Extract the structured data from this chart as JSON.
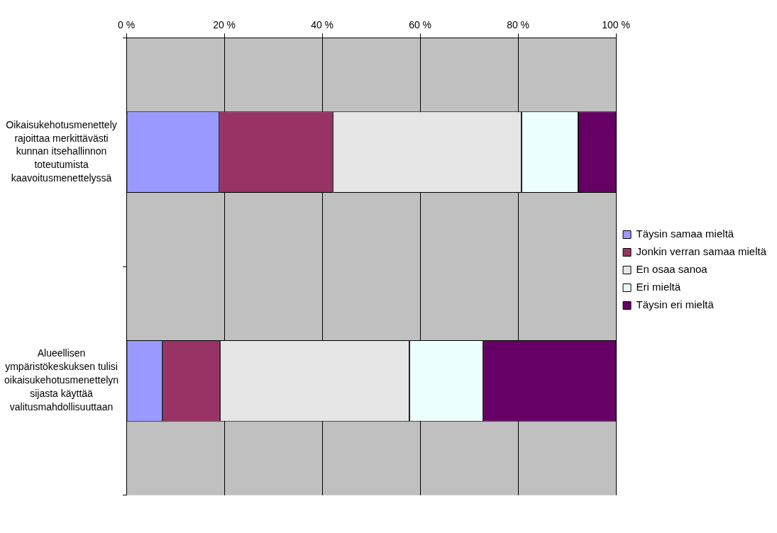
{
  "chart_data": {
    "type": "bar",
    "orientation": "horizontal",
    "stacked": true,
    "categories": [
      "Oikaisukehotusmenettely rajoittaa merkittävästi kunnan itsehallinnon toteutumista kaavoitusmenettelyssä",
      "Alueellisen ympäristökeskuksen tulisi oikaisukehotusmenettelyn sijasta käyttää valitusmahdollisuuttaan"
    ],
    "series": [
      {
        "name": "Täysin samaa mieltä",
        "color": "#9999ff",
        "values": [
          19.0,
          7.4
        ]
      },
      {
        "name": "Jonkin verran samaa mieltä",
        "color": "#993366",
        "values": [
          23.2,
          11.7
        ]
      },
      {
        "name": "En osaa sanoa",
        "color": "#e6e6e6",
        "values": [
          38.5,
          38.7
        ]
      },
      {
        "name": "Eri mieltä",
        "color": "#eeffff",
        "values": [
          11.6,
          15.1
        ]
      },
      {
        "name": "Täysin eri mieltä",
        "color": "#660066",
        "values": [
          7.7,
          27.1
        ]
      }
    ],
    "xlim": [
      0,
      100
    ],
    "xticks": [
      {
        "value": 0,
        "label": "0 %"
      },
      {
        "value": 20,
        "label": "20 %"
      },
      {
        "value": 40,
        "label": "40 %"
      },
      {
        "value": 60,
        "label": "60 %"
      },
      {
        "value": 80,
        "label": "80 %"
      },
      {
        "value": 100,
        "label": "100 %"
      }
    ],
    "grid": "x",
    "legend": "right"
  }
}
